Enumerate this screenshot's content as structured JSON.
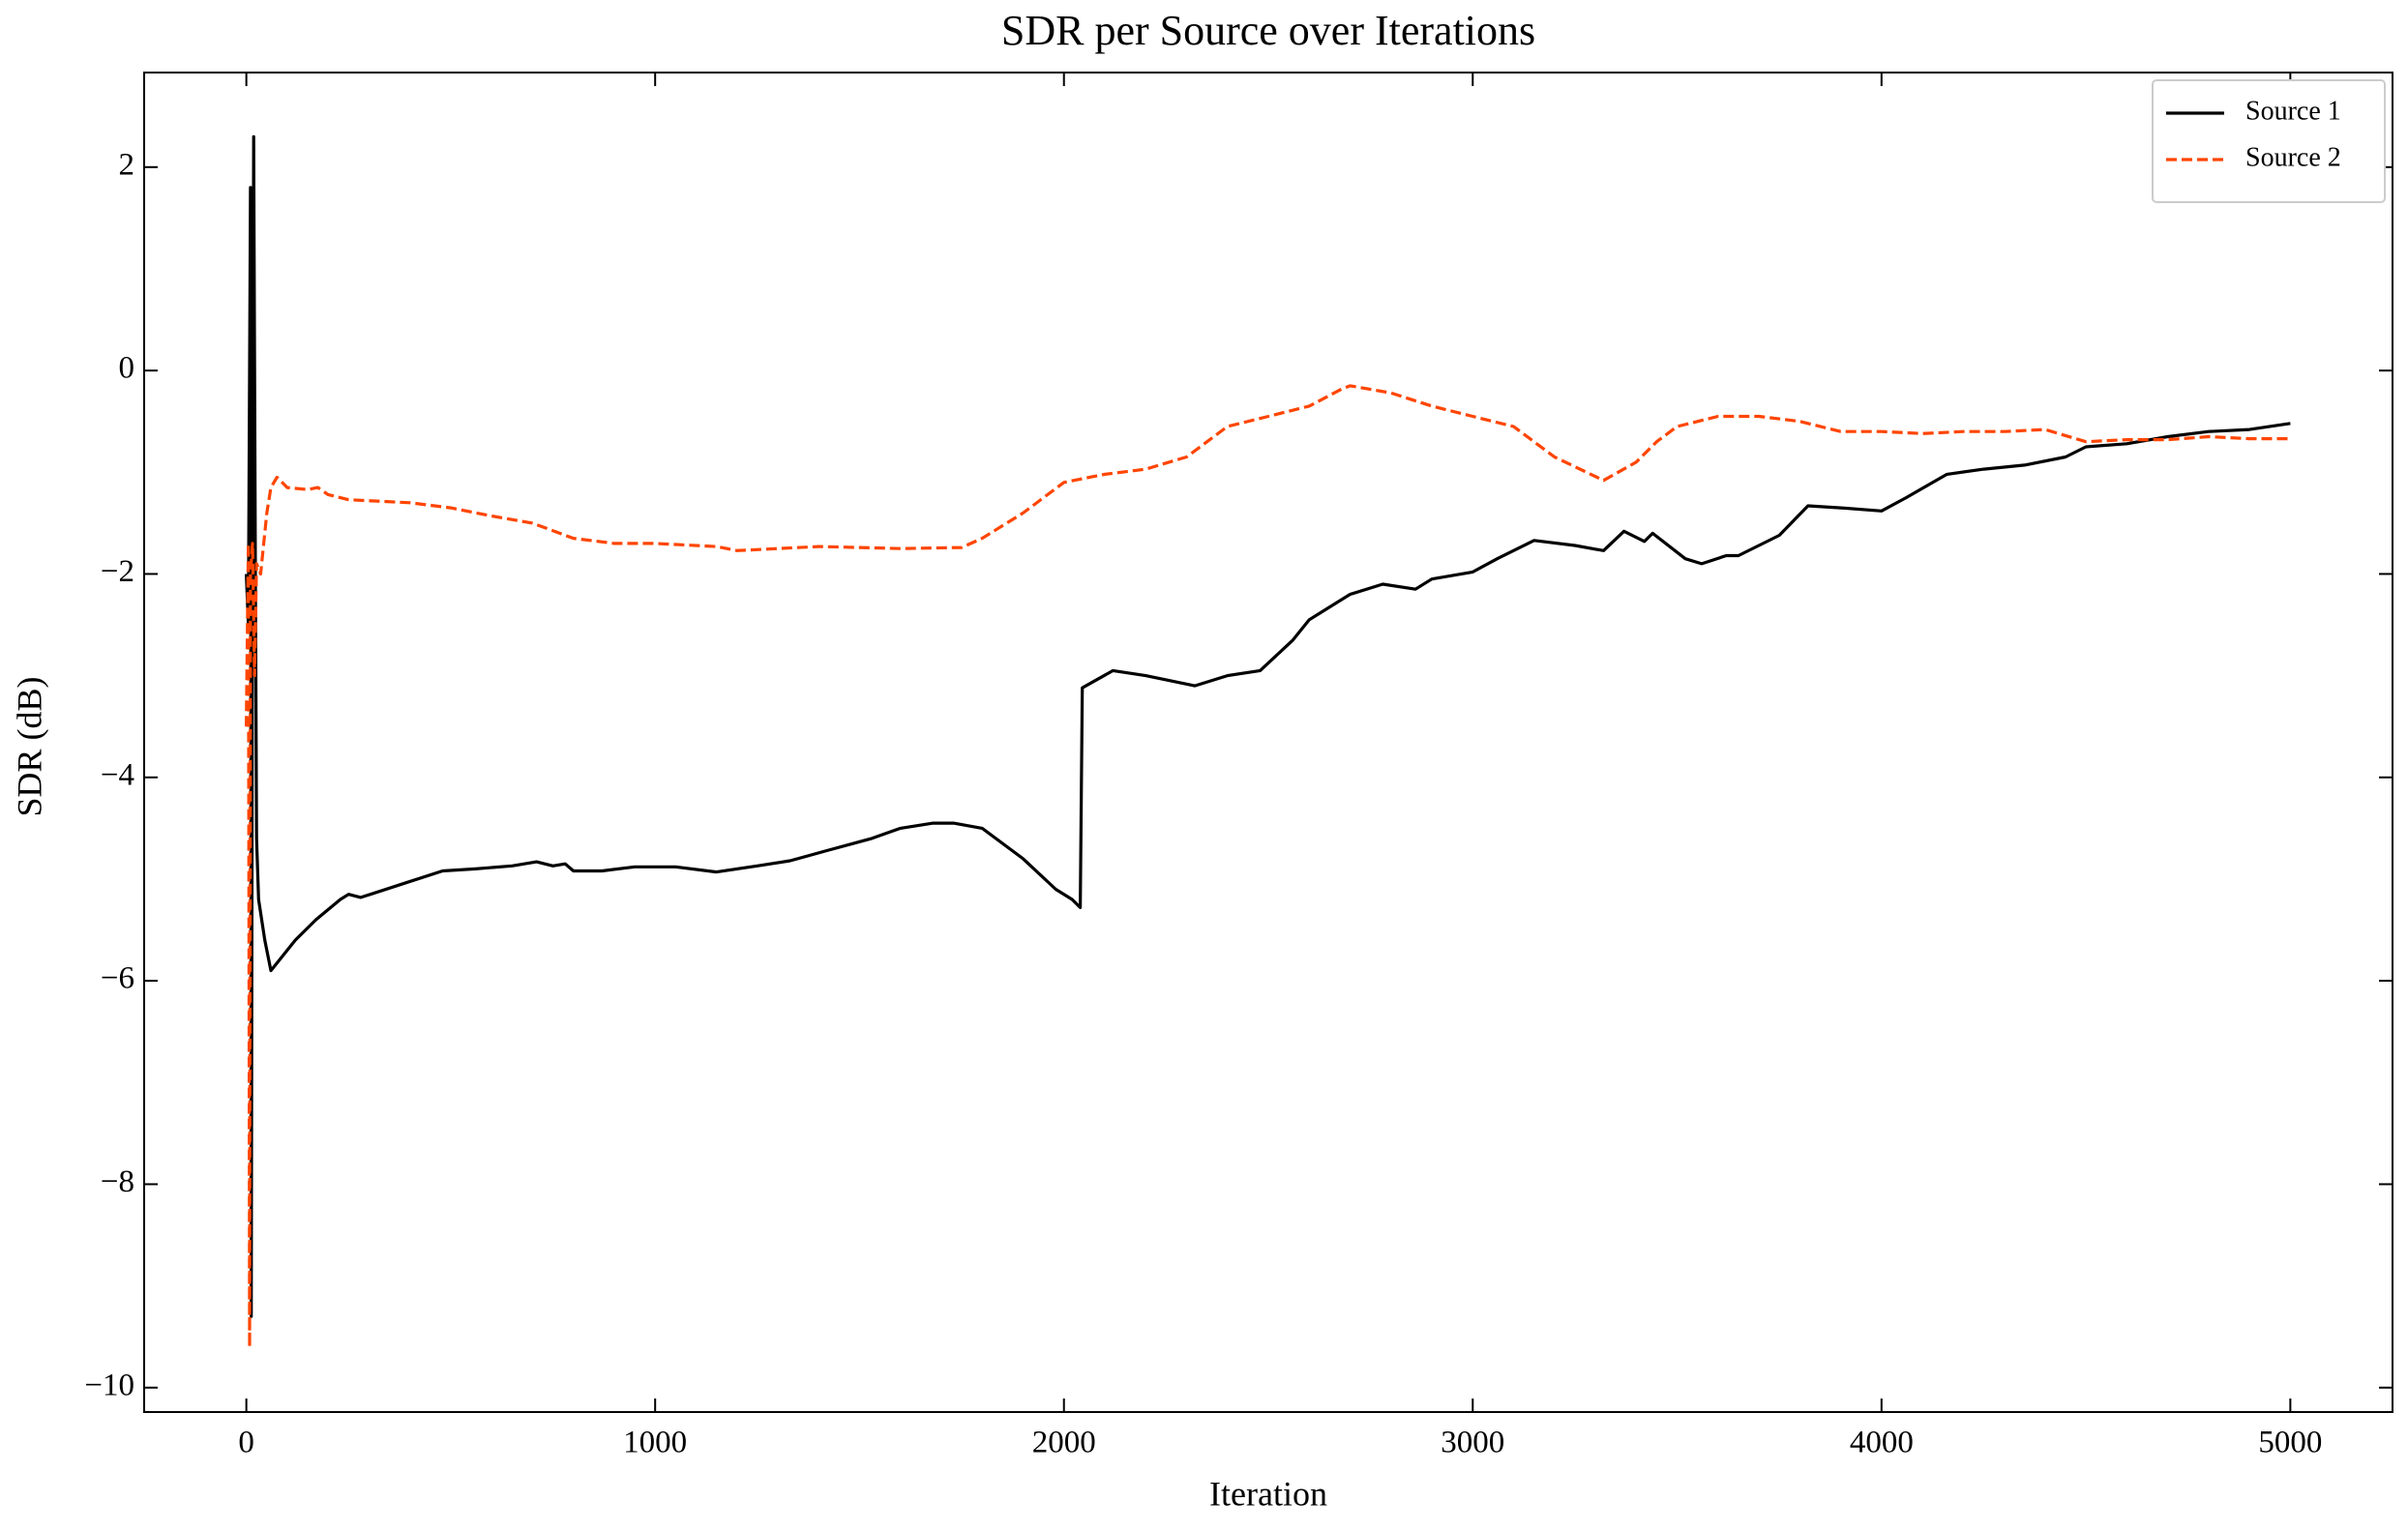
{
  "chart_data": {
    "type": "line",
    "title": "SDR per Source over Iterations",
    "xlabel": "Iteration",
    "ylabel": "SDR (dB)",
    "xlim": [
      -250,
      5250
    ],
    "ylim": [
      -10.24,
      2.93
    ],
    "xticks": [
      0,
      1000,
      2000,
      3000,
      4000,
      5000
    ],
    "yticks": [
      {
        "value": -10,
        "label": "−10"
      },
      {
        "value": -8,
        "label": "−8"
      },
      {
        "value": -6,
        "label": "−6"
      },
      {
        "value": -4,
        "label": "−4"
      },
      {
        "value": -2,
        "label": "−2"
      },
      0,
      2
    ],
    "legend": "upper right",
    "series": [
      {
        "name": "Source 1",
        "color": "#000000",
        "dash": "solid",
        "x": [
          0,
          5,
          10,
          12,
          15,
          18,
          22,
          25,
          30,
          45,
          60,
          80,
          120,
          170,
          230,
          250,
          280,
          380,
          480,
          560,
          650,
          710,
          750,
          780,
          800,
          870,
          950,
          1050,
          1150,
          1250,
          1330,
          1420,
          1530,
          1600,
          1680,
          1730,
          1800,
          1900,
          1980,
          2020,
          2040,
          2045,
          2120,
          2200,
          2320,
          2400,
          2480,
          2560,
          2600,
          2700,
          2780,
          2860,
          2900,
          3000,
          3060,
          3150,
          3250,
          3320,
          3370,
          3420,
          3440,
          3520,
          3560,
          3620,
          3650,
          3750,
          3820,
          3900,
          4000,
          4060,
          4160,
          4250,
          4350,
          4450,
          4500,
          4600,
          4700,
          4800,
          4900,
          5000
        ],
        "values": [
          -2.0,
          -2.5,
          1.8,
          -9.3,
          -1.7,
          2.3,
          -1.8,
          -4.6,
          -5.2,
          -5.6,
          -5.9,
          -5.8,
          -5.6,
          -5.4,
          -5.2,
          -5.15,
          -5.18,
          -5.05,
          -4.92,
          -4.9,
          -4.87,
          -4.83,
          -4.87,
          -4.85,
          -4.92,
          -4.92,
          -4.88,
          -4.88,
          -4.93,
          -4.87,
          -4.82,
          -4.72,
          -4.6,
          -4.5,
          -4.45,
          -4.45,
          -4.5,
          -4.8,
          -5.1,
          -5.2,
          -5.28,
          -3.12,
          -2.95,
          -3.0,
          -3.1,
          -3.0,
          -2.95,
          -2.65,
          -2.45,
          -2.2,
          -2.1,
          -2.15,
          -2.05,
          -1.98,
          -1.85,
          -1.67,
          -1.72,
          -1.77,
          -1.58,
          -1.68,
          -1.6,
          -1.85,
          -1.9,
          -1.82,
          -1.82,
          -1.62,
          -1.33,
          -1.35,
          -1.38,
          -1.25,
          -1.02,
          -0.97,
          -0.93,
          -0.85,
          -0.75,
          -0.72,
          -0.65,
          -0.6,
          -0.58,
          -0.52
        ]
      },
      {
        "name": "Source 2",
        "color": "#ff4500",
        "dash": "dashed",
        "x": [
          0,
          5,
          8,
          10,
          15,
          20,
          25,
          35,
          50,
          60,
          75,
          100,
          150,
          175,
          200,
          250,
          400,
          500,
          600,
          700,
          800,
          900,
          1000,
          1150,
          1200,
          1300,
          1400,
          1500,
          1600,
          1750,
          1800,
          1900,
          2000,
          2100,
          2200,
          2300,
          2400,
          2500,
          2600,
          2680,
          2700,
          2800,
          2900,
          3000,
          3100,
          3200,
          3320,
          3400,
          3450,
          3500,
          3600,
          3700,
          3800,
          3900,
          4000,
          4100,
          4200,
          4300,
          4400,
          4500,
          4600,
          4700,
          4800,
          4900,
          5000
        ],
        "values": [
          -3.5,
          -1.7,
          -9.6,
          -2.0,
          -1.7,
          -3.0,
          -1.9,
          -2.0,
          -1.4,
          -1.15,
          -1.05,
          -1.15,
          -1.17,
          -1.15,
          -1.22,
          -1.27,
          -1.3,
          -1.35,
          -1.43,
          -1.5,
          -1.65,
          -1.7,
          -1.7,
          -1.73,
          -1.77,
          -1.75,
          -1.73,
          -1.74,
          -1.75,
          -1.74,
          -1.65,
          -1.4,
          -1.1,
          -1.02,
          -0.97,
          -0.85,
          -0.55,
          -0.45,
          -0.35,
          -0.18,
          -0.15,
          -0.22,
          -0.35,
          -0.45,
          -0.55,
          -0.85,
          -1.08,
          -0.9,
          -0.7,
          -0.55,
          -0.45,
          -0.45,
          -0.5,
          -0.6,
          -0.6,
          -0.62,
          -0.6,
          -0.6,
          -0.58,
          -0.7,
          -0.68,
          -0.68,
          -0.65,
          -0.67,
          -0.67
        ]
      }
    ]
  }
}
